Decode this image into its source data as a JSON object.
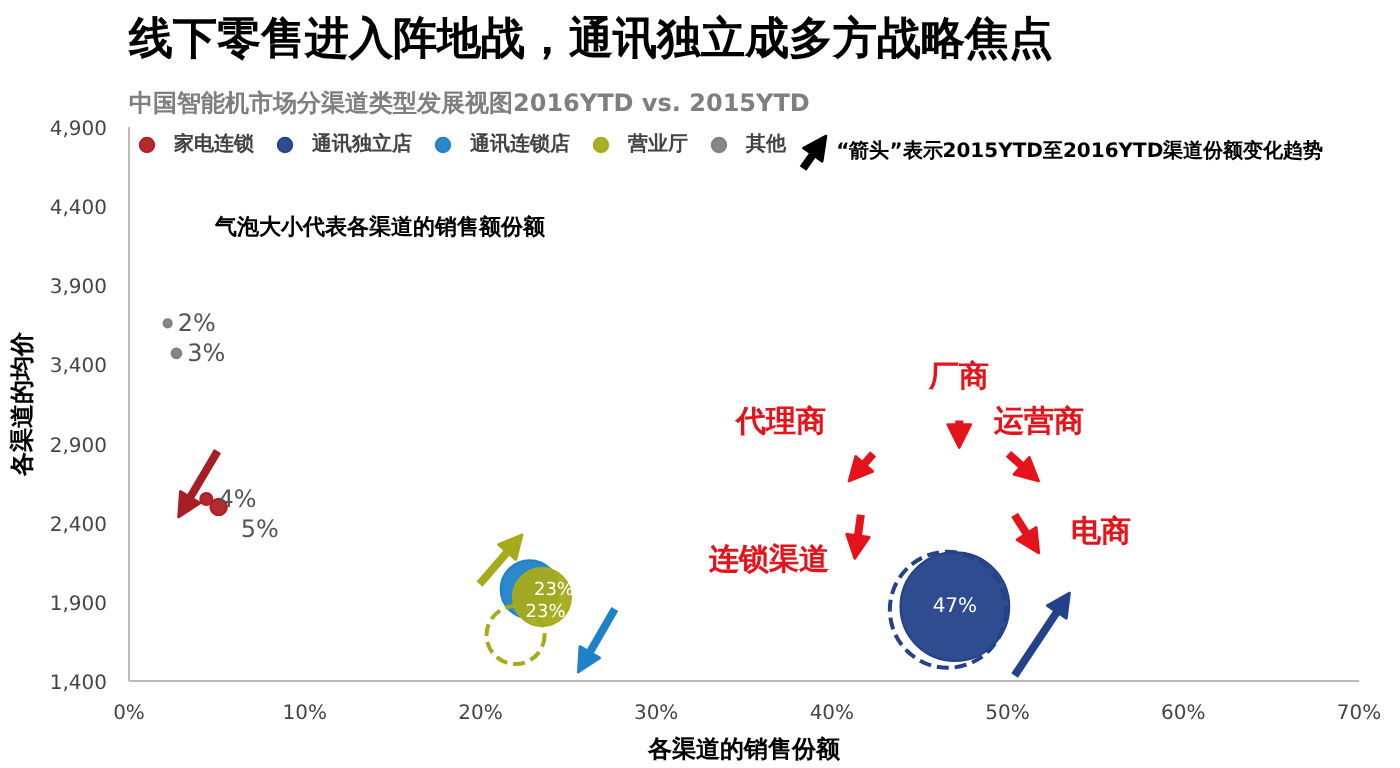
{
  "chart_data": {
    "type": "bubble",
    "title": "线下零售进入阵地战，通讯独立成多方战略焦点",
    "subtitle": "中国智能机市场分渠道类型发展视图2016YTD vs. 2015YTD",
    "xlabel": "各渠道的销售份额",
    "ylabel": "各渠道的均价",
    "xlim": [
      0,
      70
    ],
    "ylim": [
      1400,
      4900
    ],
    "xticks": [
      {
        "value": 0,
        "label": "0%"
      },
      {
        "value": 10,
        "label": "10%"
      },
      {
        "value": 20,
        "label": "20%"
      },
      {
        "value": 30,
        "label": "30%"
      },
      {
        "value": 40,
        "label": "40%"
      },
      {
        "value": 50,
        "label": "50%"
      },
      {
        "value": 60,
        "label": "60%"
      },
      {
        "value": 70,
        "label": "70%"
      }
    ],
    "yticks": [
      {
        "value": 1400,
        "label": "1,400"
      },
      {
        "value": 1900,
        "label": "1,900"
      },
      {
        "value": 2400,
        "label": "2,400"
      },
      {
        "value": 2900,
        "label": "2,900"
      },
      {
        "value": 3400,
        "label": "3,400"
      },
      {
        "value": 3900,
        "label": "3,900"
      },
      {
        "value": 4400,
        "label": "4,400"
      },
      {
        "value": 4900,
        "label": "4,900"
      }
    ],
    "grid": false,
    "legend": "top",
    "series": [
      {
        "name": "家电连锁",
        "color": "#b01f24",
        "x": [
          4.4,
          5.1
        ],
        "values": [
          2550,
          2500
        ],
        "sizes": [
          0.011,
          0.02
        ]
      },
      {
        "name": "通讯独立店",
        "color": "#24428a",
        "x": [
          47.0
        ],
        "values": [
          1870
        ],
        "sizes": [
          0.88
        ]
      },
      {
        "color": "#24428a",
        "line_style": "dashed",
        "x": [
          46.6
        ],
        "values": [
          1850
        ],
        "sizes": [
          1
        ]
      },
      {
        "name": "通讯连锁店",
        "color": "#1f82c8",
        "x": [
          22.8
        ],
        "values": [
          1980
        ],
        "sizes": [
          0.25
        ]
      },
      {
        "name": "营业厅",
        "color": "#a5ab1a",
        "x": [
          23.5
        ],
        "values": [
          1930
        ],
        "sizes": [
          0.25
        ]
      },
      {
        "color": "#a5ab1a",
        "line_style": "dashed",
        "x": [
          22.0
        ],
        "values": [
          1690
        ],
        "sizes": [
          0.25
        ]
      },
      {
        "name": "其他",
        "color": "#808080",
        "x": [
          2.2,
          2.7
        ],
        "values": [
          3660,
          3470
        ],
        "sizes": [
          0.005,
          0.007
        ]
      }
    ],
    "annotations": [
      "“箭头”表示2015YTD至2016YTD渠道份额变化趋势",
      "气泡大小代表各渠道的销售额份额",
      "代理商",
      "厂商",
      "运营商",
      "电商",
      "连锁渠道",
      {
        "text": "4%",
        "x": 4.4,
        "y": 2550
      },
      {
        "text": "5%",
        "x": 5.1,
        "y": 2500
      },
      {
        "text": "47%",
        "x": 47.0,
        "y": 1870
      },
      {
        "text": "23%",
        "x": 23.5,
        "y": 1930
      },
      {
        "text": "23%",
        "x": 22.8,
        "y": 1980
      },
      {
        "text": "2%",
        "x": 2.2,
        "y": 3660
      },
      {
        "text": "3%",
        "x": 2.7,
        "y": 3470
      }
    ]
  }
}
